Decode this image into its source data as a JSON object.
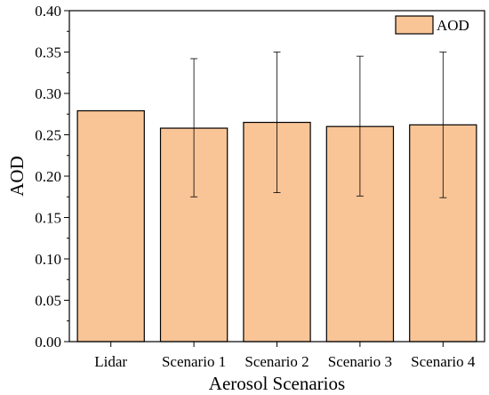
{
  "chart_data": {
    "type": "bar",
    "categories": [
      "Lidar",
      "Scenario 1",
      "Scenario 2",
      "Scenario 3",
      "Scenario 4"
    ],
    "series": [
      {
        "name": "AOD",
        "values": [
          0.279,
          0.258,
          0.265,
          0.26,
          0.262
        ],
        "error_low": [
          null,
          0.175,
          0.18,
          0.176,
          0.174
        ],
        "error_high": [
          null,
          0.342,
          0.35,
          0.345,
          0.35
        ]
      }
    ],
    "xlabel": "Aerosol Scenarios",
    "ylabel": "AOD",
    "ylim": [
      0,
      0.4
    ],
    "yticks": [
      "0.00",
      "0.05",
      "0.10",
      "0.15",
      "0.20",
      "0.25",
      "0.30",
      "0.35",
      "0.40"
    ],
    "grid": false,
    "legend_position": "top-right",
    "colors": {
      "bar_fill": "#f9c597",
      "bar_stroke": "#000000",
      "error_bar": "#000000"
    }
  }
}
